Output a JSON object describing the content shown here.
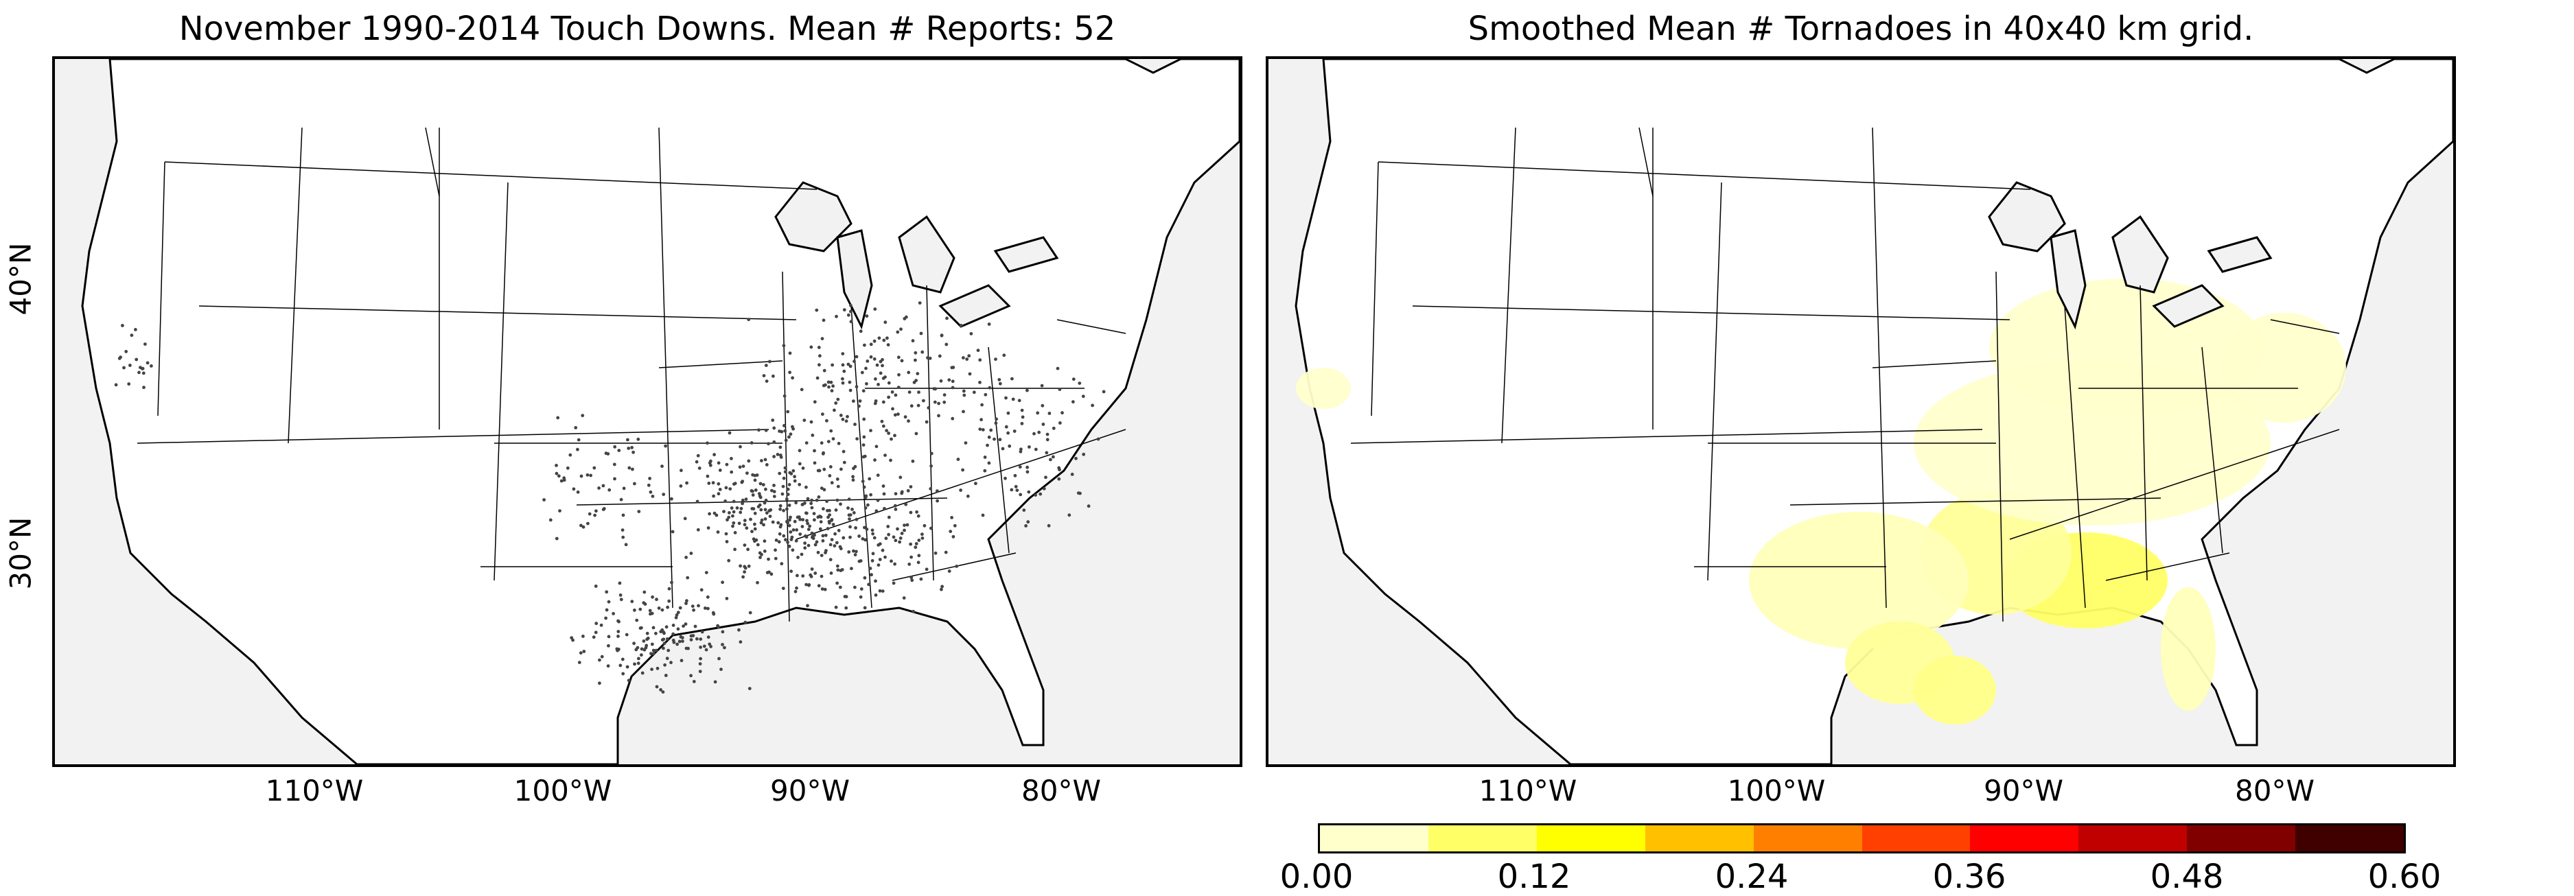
{
  "panels": [
    {
      "title": "November 1990-2014 Touch Downs. Mean # Reports: 52",
      "longitude_labels": [
        "110°W",
        "100°W",
        "90°W",
        "80°W"
      ],
      "latitude_labels": [
        "40°N",
        "30°N"
      ],
      "content": "tornado touchdown report dots"
    },
    {
      "title": "Smoothed Mean # Tornadoes in 40x40 km grid.",
      "longitude_labels": [
        "110°W",
        "100°W",
        "90°W",
        "80°W"
      ],
      "content": "smoothed density shading"
    }
  ],
  "colorbar": {
    "tick_labels": [
      "0.00",
      "0.12",
      "0.24",
      "0.36",
      "0.48",
      "0.60"
    ],
    "colors": [
      "#ffffcc",
      "#ffff66",
      "#ffff00",
      "#ffc000",
      "#ff8000",
      "#ff4000",
      "#ff0000",
      "#c00000",
      "#800000",
      "#400000"
    ],
    "range": [
      0.0,
      0.6
    ]
  },
  "map_colors": {
    "land": "#ffffff",
    "water": "#f2f2f2",
    "dot": "#444444",
    "boundary": "#000000"
  }
}
